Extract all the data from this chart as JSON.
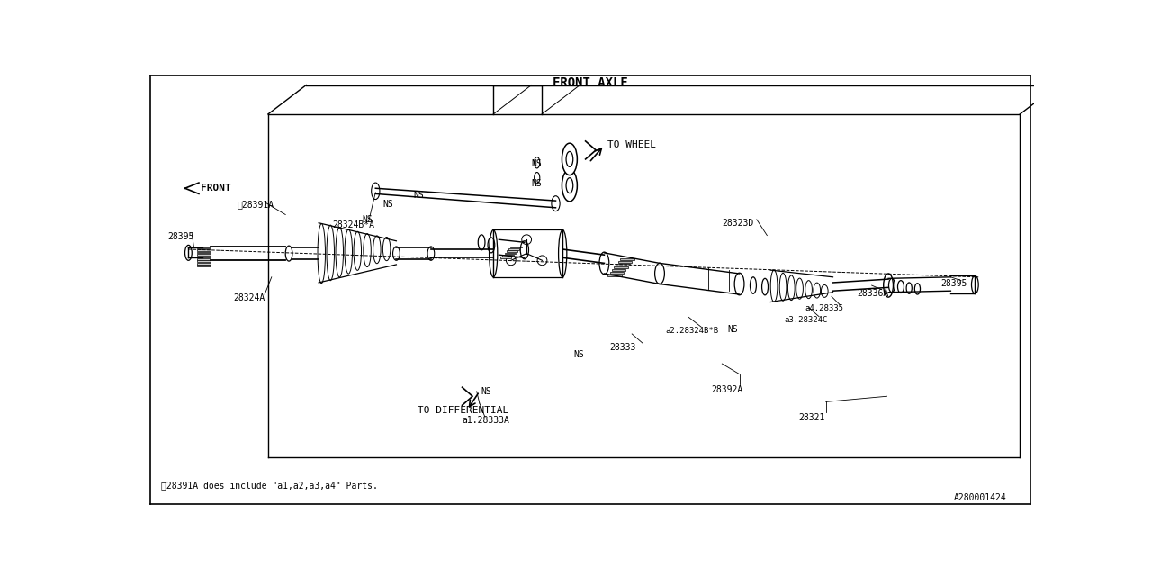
{
  "title": "FRONT AXLE",
  "background_color": "#ffffff",
  "line_color": "#000000",
  "text_color": "#000000",
  "fig_width": 12.8,
  "fig_height": 6.4,
  "dpi": 100,
  "note": "※28391A does include \"a1,a2,a3,a4\" Parts.",
  "part_id": "A280001424",
  "labels": {
    "to_differential": "TO DIFFERENTIAL",
    "to_wheel": "TO WHEEL",
    "front": "FRONT",
    "a1_28333A": "a1.28333A",
    "28321": "28321",
    "28392A": "28392A",
    "28333": "28333",
    "a2_28324BxB": "a2.28324B*B",
    "a3_28324C": "a3.28324C",
    "a4_28335": "a4.28335",
    "28336A": "28336A",
    "28395_right": "28395",
    "28323D": "28323D",
    "28395_left": "28395",
    "28324A": "28324A",
    "28324BxA": "28324B*A",
    "28391A": "※28391A"
  }
}
